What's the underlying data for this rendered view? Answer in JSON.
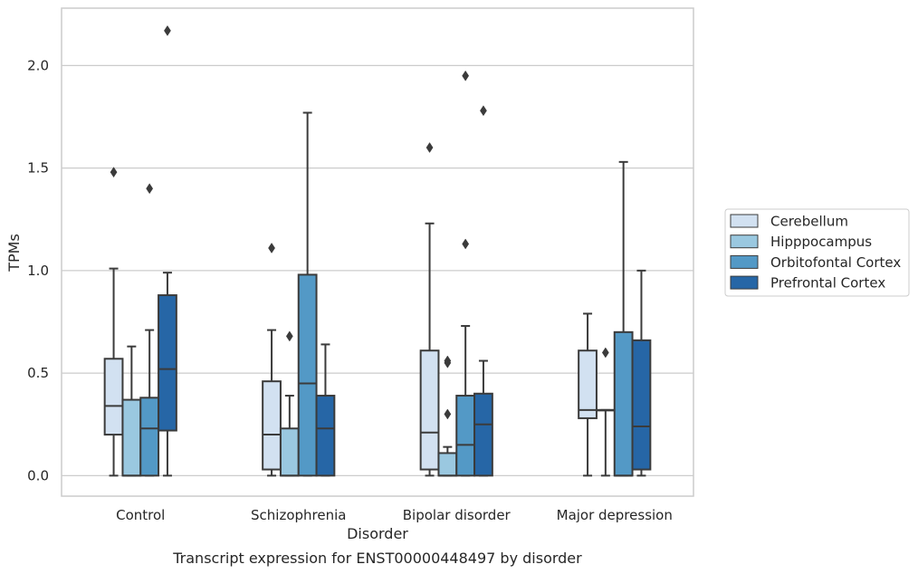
{
  "caption": "Transcript expression for ENST00000448497 by disorder",
  "chart_data": {
    "type": "box",
    "title": "",
    "xlabel": "Disorder",
    "ylabel": "TPMs",
    "ylim": [
      -0.1,
      2.28
    ],
    "yticks": [
      0.0,
      0.5,
      1.0,
      1.5,
      2.0
    ],
    "ytick_labels": [
      "0.0",
      "0.5",
      "1.0",
      "1.5",
      "2.0"
    ],
    "grid": "horizontal",
    "legend_position": "right",
    "categories": [
      "Control",
      "Schizophrenia",
      "Bipolar disorder",
      "Major depression"
    ],
    "series": [
      {
        "name": "Cerebellum",
        "color": "#d2e1f1",
        "boxes": [
          {
            "whislo": 0.0,
            "q1": 0.2,
            "med": 0.34,
            "q3": 0.57,
            "whishi": 1.01,
            "fliers": [
              1.48
            ]
          },
          {
            "whislo": 0.0,
            "q1": 0.03,
            "med": 0.2,
            "q3": 0.46,
            "whishi": 0.71,
            "fliers": [
              1.11
            ]
          },
          {
            "whislo": 0.0,
            "q1": 0.03,
            "med": 0.21,
            "q3": 0.61,
            "whishi": 1.23,
            "fliers": [
              1.6
            ]
          },
          {
            "whislo": 0.0,
            "q1": 0.28,
            "med": 0.32,
            "q3": 0.61,
            "whishi": 0.79,
            "fliers": []
          }
        ]
      },
      {
        "name": "Hipppocampus",
        "color": "#9ac8e0",
        "boxes": [
          {
            "whislo": 0.0,
            "q1": 0.0,
            "med": 0.0,
            "q3": 0.37,
            "whishi": 0.63,
            "fliers": []
          },
          {
            "whislo": 0.0,
            "q1": 0.0,
            "med": 0.0,
            "q3": 0.23,
            "whishi": 0.39,
            "fliers": [
              0.68
            ]
          },
          {
            "whislo": 0.0,
            "q1": 0.0,
            "med": 0.0,
            "q3": 0.11,
            "whishi": 0.14,
            "fliers": [
              0.3,
              0.55,
              0.56
            ]
          },
          {
            "whislo": 0.0,
            "q1": 0.32,
            "med": 0.32,
            "q3": 0.32,
            "whishi": 0.32,
            "fliers": [
              0.6
            ]
          }
        ]
      },
      {
        "name": "Orbitofontal Cortex",
        "color": "#5399c6",
        "boxes": [
          {
            "whislo": 0.0,
            "q1": 0.0,
            "med": 0.23,
            "q3": 0.38,
            "whishi": 0.71,
            "fliers": [
              1.4
            ]
          },
          {
            "whislo": 0.0,
            "q1": 0.0,
            "med": 0.45,
            "q3": 0.98,
            "whishi": 1.77,
            "fliers": []
          },
          {
            "whislo": 0.0,
            "q1": 0.0,
            "med": 0.15,
            "q3": 0.39,
            "whishi": 0.73,
            "fliers": [
              1.13,
              1.95
            ]
          },
          {
            "whislo": 0.0,
            "q1": 0.0,
            "med": 0.0,
            "q3": 0.7,
            "whishi": 1.53,
            "fliers": []
          }
        ]
      },
      {
        "name": "Prefrontal Cortex",
        "color": "#2666a6",
        "boxes": [
          {
            "whislo": 0.0,
            "q1": 0.22,
            "med": 0.52,
            "q3": 0.88,
            "whishi": 0.99,
            "fliers": [
              2.17
            ]
          },
          {
            "whislo": 0.0,
            "q1": 0.0,
            "med": 0.23,
            "q3": 0.39,
            "whishi": 0.64,
            "fliers": []
          },
          {
            "whislo": 0.0,
            "q1": 0.0,
            "med": 0.25,
            "q3": 0.4,
            "whishi": 0.56,
            "fliers": [
              1.78
            ]
          },
          {
            "whislo": 0.0,
            "q1": 0.03,
            "med": 0.24,
            "q3": 0.66,
            "whishi": 1.0,
            "fliers": []
          }
        ]
      }
    ]
  }
}
